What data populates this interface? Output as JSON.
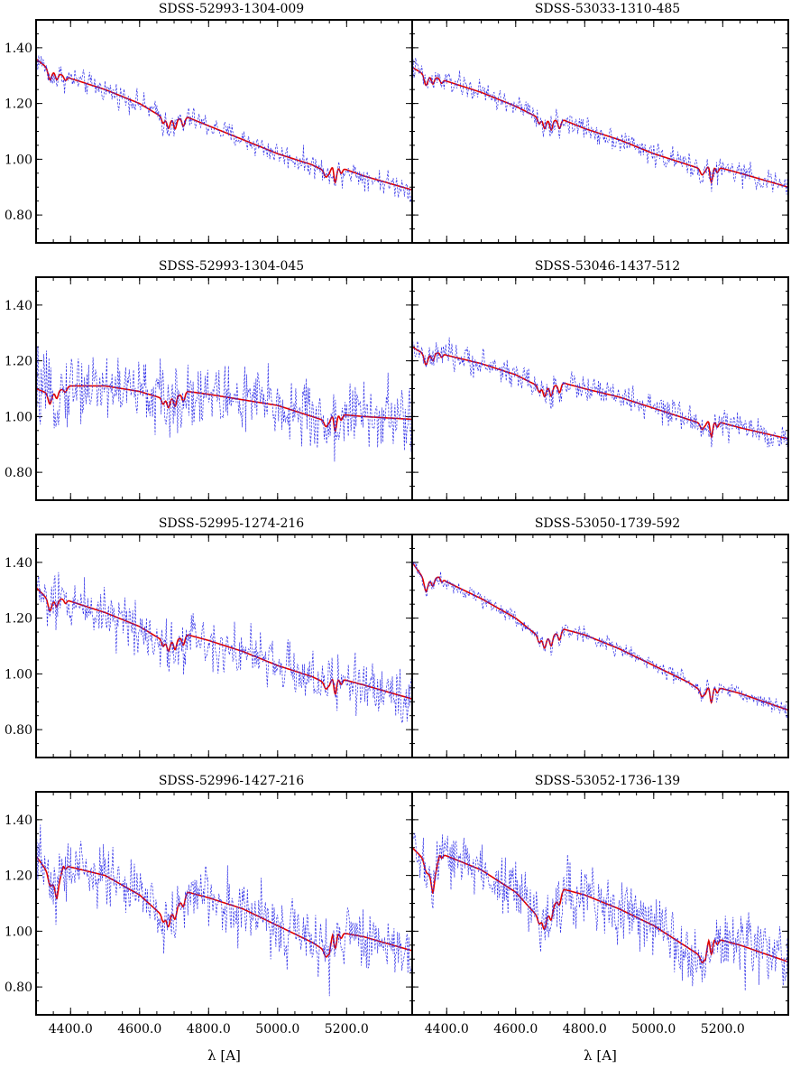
{
  "chart_data": [
    {
      "type": "line",
      "title": "SDSS-52993-1304-009",
      "xlabel": "",
      "ylabel": "",
      "xlim": [
        4300,
        5390
      ],
      "ylim": [
        0.7,
        1.5
      ],
      "yticks": [
        "0.80",
        "1.00",
        "1.20",
        "1.40"
      ],
      "xticks": [
        "4400.0",
        "4600.0",
        "4800.0",
        "5000.0",
        "5200.0"
      ],
      "show_xtick_labels": false,
      "show_ytick_labels": true,
      "series": [
        {
          "style": "model",
          "color": "#e00000",
          "x": [
            4300,
            4340,
            4380,
            4400,
            4500,
            4600,
            4680,
            4740,
            4800,
            4900,
            5000,
            5100,
            5150,
            5160,
            5250,
            5390
          ],
          "values": [
            1.36,
            1.32,
            1.3,
            1.29,
            1.25,
            1.2,
            1.14,
            1.15,
            1.12,
            1.07,
            1.02,
            0.98,
            0.95,
            0.98,
            0.94,
            0.89
          ]
        },
        {
          "style": "observed",
          "color": "#2f2fe8",
          "noise": 0.03,
          "x": [
            4300,
            4340,
            4380,
            4400,
            4500,
            4600,
            4680,
            4740,
            4800,
            4900,
            5000,
            5100,
            5150,
            5160,
            5250,
            5390
          ],
          "values": [
            1.36,
            1.32,
            1.3,
            1.29,
            1.25,
            1.2,
            1.14,
            1.15,
            1.12,
            1.07,
            1.02,
            0.98,
            0.95,
            0.98,
            0.94,
            0.89
          ]
        }
      ]
    },
    {
      "type": "line",
      "title": "SDSS-53033-1310-485",
      "xlabel": "",
      "ylabel": "",
      "xlim": [
        4300,
        5390
      ],
      "ylim": [
        0.7,
        1.5
      ],
      "yticks": [
        "0.80",
        "1.00",
        "1.20",
        "1.40"
      ],
      "xticks": [
        "4400.0",
        "4600.0",
        "4800.0",
        "5000.0",
        "5200.0"
      ],
      "show_xtick_labels": false,
      "show_ytick_labels": false,
      "series": [
        {
          "style": "model",
          "color": "#e00000",
          "x": [
            4300,
            4340,
            4380,
            4400,
            4500,
            4600,
            4680,
            4740,
            4800,
            4900,
            5000,
            5100,
            5150,
            5160,
            5250,
            5390
          ],
          "values": [
            1.33,
            1.3,
            1.29,
            1.28,
            1.24,
            1.19,
            1.14,
            1.14,
            1.11,
            1.07,
            1.02,
            0.98,
            0.96,
            0.98,
            0.95,
            0.9
          ]
        },
        {
          "style": "observed",
          "color": "#2f2fe8",
          "noise": 0.03,
          "x": [
            4300,
            4340,
            4380,
            4400,
            4500,
            4600,
            4680,
            4740,
            4800,
            4900,
            5000,
            5100,
            5150,
            5160,
            5250,
            5390
          ],
          "values": [
            1.33,
            1.3,
            1.29,
            1.28,
            1.24,
            1.19,
            1.14,
            1.14,
            1.11,
            1.07,
            1.02,
            0.98,
            0.96,
            0.98,
            0.95,
            0.9
          ]
        }
      ]
    },
    {
      "type": "line",
      "title": "SDSS-52993-1304-045",
      "xlabel": "",
      "ylabel": "",
      "xlim": [
        4300,
        5390
      ],
      "ylim": [
        0.7,
        1.5
      ],
      "yticks": [
        "0.80",
        "1.00",
        "1.20",
        "1.40"
      ],
      "xticks": [
        "4400.0",
        "4600.0",
        "4800.0",
        "5000.0",
        "5200.0"
      ],
      "show_xtick_labels": false,
      "show_ytick_labels": true,
      "series": [
        {
          "style": "model",
          "color": "#e00000",
          "x": [
            4300,
            4340,
            4380,
            4400,
            4500,
            4600,
            4680,
            4740,
            4800,
            4900,
            5000,
            5100,
            5150,
            5160,
            5250,
            5390
          ],
          "values": [
            1.1,
            1.08,
            1.1,
            1.11,
            1.11,
            1.09,
            1.06,
            1.09,
            1.08,
            1.06,
            1.04,
            1.0,
            0.98,
            1.01,
            1.0,
            0.99
          ]
        },
        {
          "style": "observed",
          "color": "#2f2fe8",
          "noise": 0.09,
          "x": [
            4300,
            4340,
            4380,
            4400,
            4500,
            4600,
            4680,
            4740,
            4800,
            4900,
            5000,
            5100,
            5150,
            5160,
            5250,
            5390
          ],
          "values": [
            1.1,
            1.08,
            1.1,
            1.11,
            1.11,
            1.09,
            1.06,
            1.09,
            1.08,
            1.06,
            1.04,
            1.0,
            0.98,
            1.01,
            1.0,
            0.99
          ]
        }
      ]
    },
    {
      "type": "line",
      "title": "SDSS-53046-1437-512",
      "xlabel": "",
      "ylabel": "",
      "xlim": [
        4300,
        5390
      ],
      "ylim": [
        0.7,
        1.5
      ],
      "yticks": [
        "0.80",
        "1.00",
        "1.20",
        "1.40"
      ],
      "xticks": [
        "4400.0",
        "4600.0",
        "4800.0",
        "5000.0",
        "5200.0"
      ],
      "show_xtick_labels": false,
      "show_ytick_labels": false,
      "series": [
        {
          "style": "model",
          "color": "#e00000",
          "x": [
            4300,
            4340,
            4380,
            4400,
            4500,
            4600,
            4680,
            4740,
            4800,
            4900,
            5000,
            5100,
            5150,
            5160,
            5250,
            5390
          ],
          "values": [
            1.25,
            1.22,
            1.23,
            1.22,
            1.19,
            1.15,
            1.1,
            1.12,
            1.1,
            1.07,
            1.03,
            0.99,
            0.97,
            0.99,
            0.96,
            0.92
          ]
        },
        {
          "style": "observed",
          "color": "#2f2fe8",
          "noise": 0.035,
          "x": [
            4300,
            4340,
            4380,
            4400,
            4500,
            4600,
            4680,
            4740,
            4800,
            4900,
            5000,
            5100,
            5150,
            5160,
            5250,
            5390
          ],
          "values": [
            1.25,
            1.22,
            1.23,
            1.22,
            1.19,
            1.15,
            1.1,
            1.12,
            1.1,
            1.07,
            1.03,
            0.99,
            0.97,
            0.99,
            0.96,
            0.92
          ]
        }
      ]
    },
    {
      "type": "line",
      "title": "SDSS-52995-1274-216",
      "xlabel": "",
      "ylabel": "",
      "xlim": [
        4300,
        5390
      ],
      "ylim": [
        0.7,
        1.5
      ],
      "yticks": [
        "0.80",
        "1.00",
        "1.20",
        "1.40"
      ],
      "xticks": [
        "4400.0",
        "4600.0",
        "4800.0",
        "5000.0",
        "5200.0"
      ],
      "show_xtick_labels": false,
      "show_ytick_labels": true,
      "series": [
        {
          "style": "model",
          "color": "#e00000",
          "x": [
            4300,
            4340,
            4380,
            4400,
            4500,
            4600,
            4680,
            4740,
            4800,
            4900,
            5000,
            5100,
            5150,
            5160,
            5250,
            5390
          ],
          "values": [
            1.31,
            1.26,
            1.27,
            1.26,
            1.22,
            1.17,
            1.11,
            1.14,
            1.12,
            1.08,
            1.03,
            0.99,
            0.96,
            0.99,
            0.96,
            0.91
          ]
        },
        {
          "style": "observed",
          "color": "#2f2fe8",
          "noise": 0.07,
          "x": [
            4300,
            4340,
            4380,
            4400,
            4500,
            4600,
            4680,
            4740,
            4800,
            4900,
            5000,
            5100,
            5150,
            5160,
            5250,
            5390
          ],
          "values": [
            1.31,
            1.26,
            1.27,
            1.26,
            1.22,
            1.17,
            1.11,
            1.14,
            1.12,
            1.08,
            1.03,
            0.99,
            0.96,
            0.99,
            0.96,
            0.91
          ]
        }
      ]
    },
    {
      "type": "line",
      "title": "SDSS-53050-1739-592",
      "xlabel": "",
      "ylabel": "",
      "xlim": [
        4300,
        5390
      ],
      "ylim": [
        0.7,
        1.5
      ],
      "yticks": [
        "0.80",
        "1.00",
        "1.20",
        "1.40"
      ],
      "xticks": [
        "4400.0",
        "4600.0",
        "4800.0",
        "5000.0",
        "5200.0"
      ],
      "show_xtick_labels": false,
      "show_ytick_labels": false,
      "series": [
        {
          "style": "model",
          "color": "#e00000",
          "x": [
            4300,
            4340,
            4380,
            4400,
            4500,
            4600,
            4680,
            4740,
            4800,
            4900,
            5000,
            5100,
            5150,
            5160,
            5250,
            5390
          ],
          "values": [
            1.4,
            1.33,
            1.35,
            1.33,
            1.27,
            1.2,
            1.12,
            1.16,
            1.14,
            1.09,
            1.03,
            0.97,
            0.93,
            0.96,
            0.93,
            0.87
          ]
        },
        {
          "style": "observed",
          "color": "#2f2fe8",
          "noise": 0.02,
          "x": [
            4300,
            4340,
            4380,
            4400,
            4500,
            4600,
            4680,
            4740,
            4800,
            4900,
            5000,
            5100,
            5150,
            5160,
            5250,
            5390
          ],
          "values": [
            1.4,
            1.33,
            1.35,
            1.33,
            1.27,
            1.2,
            1.12,
            1.16,
            1.14,
            1.09,
            1.03,
            0.97,
            0.93,
            0.96,
            0.93,
            0.87
          ]
        }
      ]
    },
    {
      "type": "line",
      "title": "SDSS-52996-1427-216",
      "xlabel": "λ [A]",
      "ylabel": "",
      "xlim": [
        4300,
        5390
      ],
      "ylim": [
        0.7,
        1.5
      ],
      "yticks": [
        "0.80",
        "1.00",
        "1.20",
        "1.40"
      ],
      "xticks": [
        "4400.0",
        "4600.0",
        "4800.0",
        "5000.0",
        "5200.0"
      ],
      "show_xtick_labels": true,
      "show_ytick_labels": true,
      "series": [
        {
          "style": "model",
          "color": "#e00000",
          "x": [
            4300,
            4340,
            4360,
            4380,
            4400,
            4500,
            4600,
            4680,
            4740,
            4800,
            4900,
            5000,
            5100,
            5150,
            5160,
            5250,
            5390
          ],
          "values": [
            1.27,
            1.2,
            1.14,
            1.24,
            1.23,
            1.2,
            1.13,
            1.04,
            1.14,
            1.12,
            1.08,
            1.02,
            0.96,
            0.92,
            1.0,
            0.98,
            0.93
          ]
        },
        {
          "style": "observed",
          "color": "#2f2fe8",
          "noise": 0.08,
          "x": [
            4300,
            4340,
            4360,
            4380,
            4400,
            4500,
            4600,
            4680,
            4740,
            4800,
            4900,
            5000,
            5100,
            5150,
            5160,
            5250,
            5390
          ],
          "values": [
            1.27,
            1.2,
            1.14,
            1.24,
            1.23,
            1.2,
            1.13,
            1.04,
            1.14,
            1.12,
            1.08,
            1.02,
            0.96,
            0.92,
            1.0,
            0.98,
            0.93
          ]
        }
      ]
    },
    {
      "type": "line",
      "title": "SDSS-53052-1736-139",
      "xlabel": "λ [A]",
      "ylabel": "",
      "xlim": [
        4300,
        5390
      ],
      "ylim": [
        0.7,
        1.5
      ],
      "yticks": [
        "0.80",
        "1.00",
        "1.20",
        "1.40"
      ],
      "xticks": [
        "4400.0",
        "4600.0",
        "4800.0",
        "5000.0",
        "5200.0"
      ],
      "show_xtick_labels": true,
      "show_ytick_labels": false,
      "series": [
        {
          "style": "model",
          "color": "#e00000",
          "x": [
            4300,
            4340,
            4360,
            4380,
            4400,
            4500,
            4600,
            4680,
            4740,
            4800,
            4900,
            5000,
            5100,
            5150,
            5160,
            5250,
            5390
          ],
          "values": [
            1.3,
            1.25,
            1.16,
            1.28,
            1.27,
            1.22,
            1.14,
            1.03,
            1.15,
            1.13,
            1.08,
            1.02,
            0.94,
            0.9,
            0.98,
            0.95,
            0.89
          ]
        },
        {
          "style": "observed",
          "color": "#2f2fe8",
          "noise": 0.08,
          "x": [
            4300,
            4340,
            4360,
            4380,
            4400,
            4500,
            4600,
            4680,
            4740,
            4800,
            4900,
            5000,
            5100,
            5150,
            5160,
            5250,
            5390
          ],
          "values": [
            1.3,
            1.25,
            1.16,
            1.28,
            1.27,
            1.22,
            1.14,
            1.03,
            1.15,
            1.13,
            1.08,
            1.02,
            0.94,
            0.9,
            0.98,
            0.95,
            0.89
          ]
        }
      ]
    }
  ]
}
